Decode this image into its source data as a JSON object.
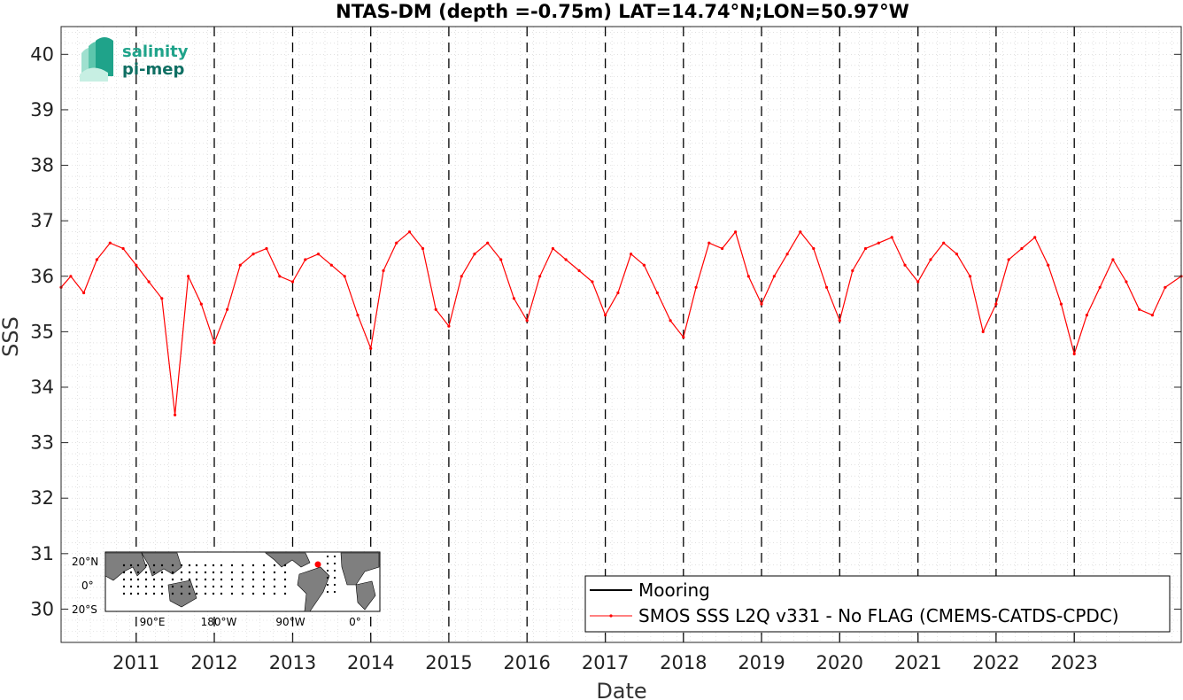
{
  "chart_data": {
    "type": "line",
    "title": "NTAS-DM (depth =-0.75m) LAT=14.74°N;LON=50.97°W",
    "xlabel": "Date",
    "ylabel": "SSS",
    "xlim": [
      "2010-01-15",
      "2024-05-15"
    ],
    "ylim": [
      29.4,
      40.5
    ],
    "y_ticks": [
      "30",
      "31",
      "32",
      "33",
      "34",
      "35",
      "36",
      "37",
      "38",
      "39",
      "40"
    ],
    "x_ticks": [
      "2011",
      "2012",
      "2013",
      "2014",
      "2015",
      "2016",
      "2017",
      "2018",
      "2019",
      "2020",
      "2021",
      "2022",
      "2023"
    ],
    "grid": true,
    "year_boundaries": [
      "2011-01-01",
      "2012-01-01",
      "2013-01-01",
      "2014-01-01",
      "2015-01-01",
      "2016-01-01",
      "2017-01-01",
      "2018-01-01",
      "2019-01-01",
      "2020-01-01",
      "2021-01-01",
      "2022-01-01",
      "2023-01-01"
    ],
    "series": [
      {
        "name": "Mooring",
        "color": "#000000",
        "x": [],
        "y": []
      },
      {
        "name": "SMOS SSS L2Q v331 - No FLAG  (CMEMS-CATDS-CPDC)",
        "color": "#ff0000",
        "x": [
          "2010-01-15",
          "2010-03-01",
          "2010-05-01",
          "2010-07-01",
          "2010-09-01",
          "2010-11-01",
          "2011-01-01",
          "2011-03-01",
          "2011-05-01",
          "2011-07-01",
          "2011-09-01",
          "2011-11-01",
          "2012-01-01",
          "2012-03-01",
          "2012-05-01",
          "2012-07-01",
          "2012-09-01",
          "2012-11-01",
          "2013-01-01",
          "2013-03-01",
          "2013-05-01",
          "2013-07-01",
          "2013-09-01",
          "2013-11-01",
          "2014-01-01",
          "2014-03-01",
          "2014-05-01",
          "2014-07-01",
          "2014-09-01",
          "2014-11-01",
          "2015-01-01",
          "2015-03-01",
          "2015-05-01",
          "2015-07-01",
          "2015-09-01",
          "2015-11-01",
          "2016-01-01",
          "2016-03-01",
          "2016-05-01",
          "2016-07-01",
          "2016-09-01",
          "2016-11-01",
          "2017-01-01",
          "2017-03-01",
          "2017-05-01",
          "2017-07-01",
          "2017-09-01",
          "2017-11-01",
          "2018-01-01",
          "2018-03-01",
          "2018-05-01",
          "2018-07-01",
          "2018-09-01",
          "2018-11-01",
          "2019-01-01",
          "2019-03-01",
          "2019-05-01",
          "2019-07-01",
          "2019-09-01",
          "2019-11-01",
          "2020-01-01",
          "2020-03-01",
          "2020-05-01",
          "2020-07-01",
          "2020-09-01",
          "2020-11-01",
          "2021-01-01",
          "2021-03-01",
          "2021-05-01",
          "2021-07-01",
          "2021-09-01",
          "2021-11-01",
          "2022-01-01",
          "2022-03-01",
          "2022-05-01",
          "2022-07-01",
          "2022-09-01",
          "2022-11-01",
          "2023-01-01",
          "2023-03-01",
          "2023-05-01",
          "2023-07-01",
          "2023-09-01",
          "2023-11-01",
          "2024-01-01",
          "2024-03-01",
          "2024-05-15"
        ],
        "y": [
          35.8,
          36.0,
          35.7,
          36.3,
          36.6,
          36.5,
          36.2,
          35.9,
          35.6,
          33.5,
          36.0,
          35.5,
          34.8,
          35.4,
          36.2,
          36.4,
          36.5,
          36.0,
          35.9,
          36.3,
          36.4,
          36.2,
          36.0,
          35.3,
          34.7,
          36.1,
          36.6,
          36.8,
          36.5,
          35.4,
          35.1,
          36.0,
          36.4,
          36.6,
          36.3,
          35.6,
          35.2,
          36.0,
          36.5,
          36.3,
          36.1,
          35.9,
          35.3,
          35.7,
          36.4,
          36.2,
          35.7,
          35.2,
          34.9,
          35.8,
          36.6,
          36.5,
          36.8,
          36.0,
          35.5,
          36.0,
          36.4,
          36.8,
          36.5,
          35.8,
          35.2,
          36.1,
          36.5,
          36.6,
          36.7,
          36.2,
          35.9,
          36.3,
          36.6,
          36.4,
          36.0,
          35.0,
          35.5,
          36.3,
          36.5,
          36.7,
          36.2,
          35.5,
          34.6,
          35.3,
          35.8,
          36.3,
          35.9,
          35.4,
          35.3,
          35.8,
          36.0
        ]
      }
    ],
    "inset_map": {
      "lat_labels": [
        "20°N",
        "0°",
        "20°S"
      ],
      "lon_labels": [
        "90°E",
        "180°W",
        "90°W",
        "0°"
      ],
      "marker_color": "#ff0000"
    },
    "logo": {
      "line1": "salinity",
      "line2": "pi-mep"
    }
  }
}
